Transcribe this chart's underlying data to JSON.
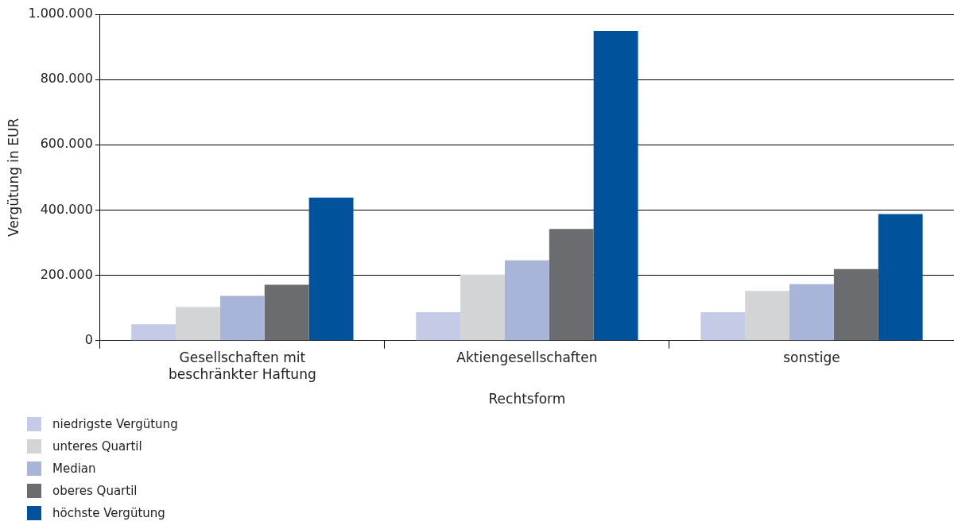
{
  "chart_data": {
    "type": "bar",
    "xlabel": "Rechtsform",
    "ylabel": "Vergütung in EUR",
    "categories": [
      "Gesellschaften mit beschränkter Haftung",
      "Aktiengesellschaften",
      "sonstige"
    ],
    "series": [
      {
        "name": "niedrigste Vergütung",
        "color": "#c5cae6",
        "values": [
          50000,
          87000,
          87000
        ]
      },
      {
        "name": "unteres Quartil",
        "color": "#d3d4d6",
        "values": [
          103000,
          202000,
          152000
        ]
      },
      {
        "name": "Median",
        "color": "#a8b4d8",
        "values": [
          137000,
          246000,
          173000
        ]
      },
      {
        "name": "oberes Quartil",
        "color": "#6b6c70",
        "values": [
          171000,
          342000,
          219000
        ]
      },
      {
        "name": "höchste Vergütung",
        "color": "#00529b",
        "values": [
          438000,
          949000,
          388000
        ]
      }
    ],
    "ylim": [
      0,
      1000000
    ],
    "yticks": [
      {
        "value": 0,
        "label": "0"
      },
      {
        "value": 200000,
        "label": "200.000"
      },
      {
        "value": 400000,
        "label": "400.000"
      },
      {
        "value": 600000,
        "label": "600.000"
      },
      {
        "value": 800000,
        "label": "800.000"
      },
      {
        "value": 1000000,
        "label": "1.000.000"
      }
    ],
    "grid": "y",
    "legend": "bottom left"
  }
}
